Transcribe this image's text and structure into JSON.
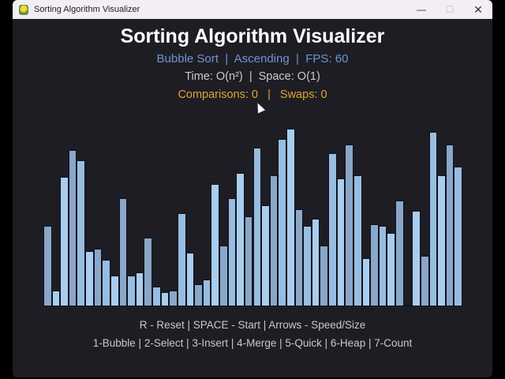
{
  "window": {
    "title": "Sorting Algorithm Visualizer",
    "app_icon": "pygame-snake-icon",
    "controls": {
      "minimize": "—",
      "maximize": "☐",
      "close": "✕"
    }
  },
  "header": {
    "title": "Sorting Algorithm Visualizer",
    "algorithm": "Bubble Sort",
    "order": "Ascending",
    "fps_label": "FPS: 60",
    "info_line": "Bubble Sort  |  Ascending  |  FPS: 60",
    "complexity_line": "Time: O(n²)  |  Space: O(1)",
    "time_complexity": "O(n²)",
    "space_complexity": "O(1)",
    "stats_line": "Comparisons: 0   |   Swaps: 0",
    "comparisons": 0,
    "swaps": 0
  },
  "colors": {
    "background": "#1e1d24",
    "title": "#ffffff",
    "info": "#6f94d0",
    "complexity": "#c9c9c9",
    "stats": "#e2a532",
    "bar_shades": [
      "#8aa7c8",
      "#a9cdee",
      "#98bde0"
    ]
  },
  "bars": {
    "count": 50,
    "heights": [
      102,
      20,
      164,
      198,
      185,
      70,
      73,
      59,
      39,
      137,
      39,
      43,
      87,
      25,
      18,
      20,
      118,
      68,
      28,
      34,
      155,
      77,
      137,
      169,
      114,
      201,
      128,
      166,
      212,
      225,
      123,
      102,
      111,
      77,
      194,
      162,
      205,
      166,
      61,
      104,
      102,
      93,
      134,
      2,
      121,
      64,
      221,
      166,
      205,
      177
    ],
    "shade_index": [
      0,
      1,
      1,
      0,
      2,
      1,
      0,
      2,
      1,
      0,
      2,
      1,
      0,
      2,
      1,
      0,
      2,
      1,
      0,
      2,
      1,
      0,
      2,
      1,
      0,
      2,
      1,
      0,
      2,
      1,
      0,
      2,
      1,
      0,
      2,
      1,
      0,
      2,
      1,
      0,
      2,
      1,
      0,
      2,
      1,
      0,
      2,
      1,
      0,
      2
    ]
  },
  "help": {
    "controls_line": "R - Reset | SPACE - Start | Arrows - Speed/Size",
    "algorithms_line": "1-Bubble | 2-Select | 3-Insert | 4-Merge | 5-Quick | 6-Heap | 7-Count"
  }
}
